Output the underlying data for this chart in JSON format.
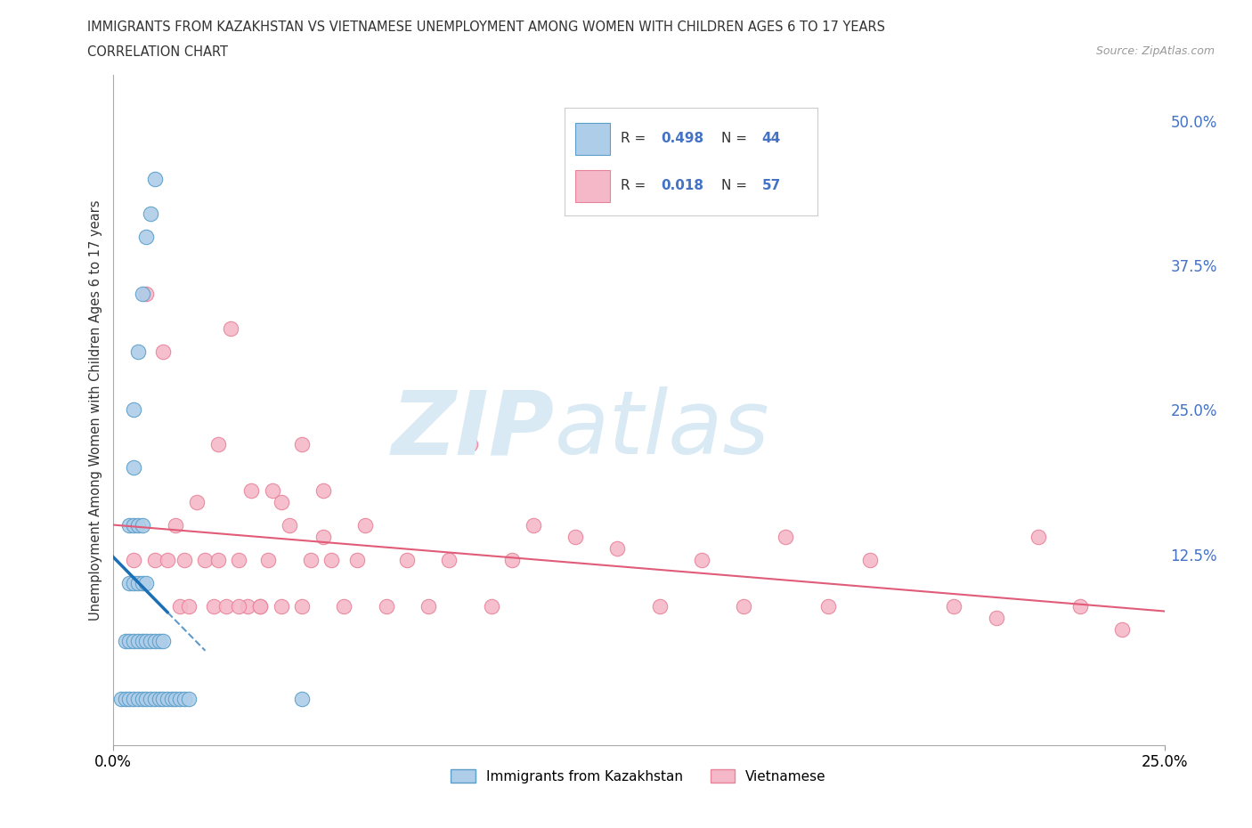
{
  "title_line1": "IMMIGRANTS FROM KAZAKHSTAN VS VIETNAMESE UNEMPLOYMENT AMONG WOMEN WITH CHILDREN AGES 6 TO 17 YEARS",
  "title_line2": "CORRELATION CHART",
  "source": "Source: ZipAtlas.com",
  "ylabel": "Unemployment Among Women with Children Ages 6 to 17 years",
  "xlim": [
    0.0,
    0.25
  ],
  "ylim": [
    -0.04,
    0.54
  ],
  "ytick_positions": [
    0.0,
    0.125,
    0.25,
    0.375,
    0.5
  ],
  "ytick_labels": [
    "",
    "12.5%",
    "25.0%",
    "37.5%",
    "50.0%"
  ],
  "R_kaz": 0.498,
  "N_kaz": 44,
  "R_viet": 0.018,
  "N_viet": 57,
  "kaz_color": "#aecde8",
  "viet_color": "#f4b8c8",
  "kaz_edge": "#5a9ec9",
  "viet_edge": "#e8839a",
  "trendline_kaz_color": "#1a6fb5",
  "trendline_viet_color": "#e05c78",
  "watermark_color": "#daeaf5",
  "background_color": "#ffffff",
  "legend_box_color": "#ffffff",
  "legend_edge_color": "#cccccc",
  "right_tick_color": "#4472c4",
  "kaz_x": [
    0.002,
    0.003,
    0.003,
    0.004,
    0.004,
    0.004,
    0.004,
    0.005,
    0.005,
    0.005,
    0.005,
    0.005,
    0.005,
    0.006,
    0.006,
    0.006,
    0.006,
    0.006,
    0.007,
    0.007,
    0.007,
    0.007,
    0.007,
    0.008,
    0.008,
    0.008,
    0.008,
    0.009,
    0.009,
    0.009,
    0.01,
    0.01,
    0.01,
    0.011,
    0.011,
    0.012,
    0.012,
    0.013,
    0.014,
    0.015,
    0.016,
    0.017,
    0.018,
    0.045
  ],
  "kaz_y": [
    0.0,
    0.0,
    0.05,
    0.0,
    0.05,
    0.1,
    0.15,
    0.0,
    0.05,
    0.1,
    0.15,
    0.2,
    0.25,
    0.0,
    0.05,
    0.1,
    0.15,
    0.3,
    0.0,
    0.05,
    0.1,
    0.15,
    0.35,
    0.0,
    0.05,
    0.1,
    0.4,
    0.0,
    0.05,
    0.42,
    0.0,
    0.05,
    0.45,
    0.0,
    0.05,
    0.0,
    0.05,
    0.0,
    0.0,
    0.0,
    0.0,
    0.0,
    0.0,
    0.0
  ],
  "viet_x": [
    0.005,
    0.008,
    0.01,
    0.012,
    0.013,
    0.015,
    0.016,
    0.017,
    0.018,
    0.02,
    0.022,
    0.024,
    0.025,
    0.027,
    0.028,
    0.03,
    0.032,
    0.033,
    0.035,
    0.037,
    0.038,
    0.04,
    0.042,
    0.045,
    0.047,
    0.05,
    0.052,
    0.055,
    0.058,
    0.06,
    0.065,
    0.07,
    0.075,
    0.08,
    0.085,
    0.09,
    0.095,
    0.1,
    0.11,
    0.12,
    0.13,
    0.14,
    0.15,
    0.16,
    0.17,
    0.18,
    0.2,
    0.21,
    0.22,
    0.23,
    0.24,
    0.025,
    0.03,
    0.035,
    0.04,
    0.045,
    0.05
  ],
  "viet_y": [
    0.12,
    0.35,
    0.12,
    0.3,
    0.12,
    0.15,
    0.08,
    0.12,
    0.08,
    0.17,
    0.12,
    0.08,
    0.22,
    0.08,
    0.32,
    0.12,
    0.08,
    0.18,
    0.08,
    0.12,
    0.18,
    0.08,
    0.15,
    0.22,
    0.12,
    0.18,
    0.12,
    0.08,
    0.12,
    0.15,
    0.08,
    0.12,
    0.08,
    0.12,
    0.22,
    0.08,
    0.12,
    0.15,
    0.14,
    0.13,
    0.08,
    0.12,
    0.08,
    0.14,
    0.08,
    0.12,
    0.08,
    0.07,
    0.14,
    0.08,
    0.06,
    0.12,
    0.08,
    0.08,
    0.17,
    0.08,
    0.14
  ]
}
